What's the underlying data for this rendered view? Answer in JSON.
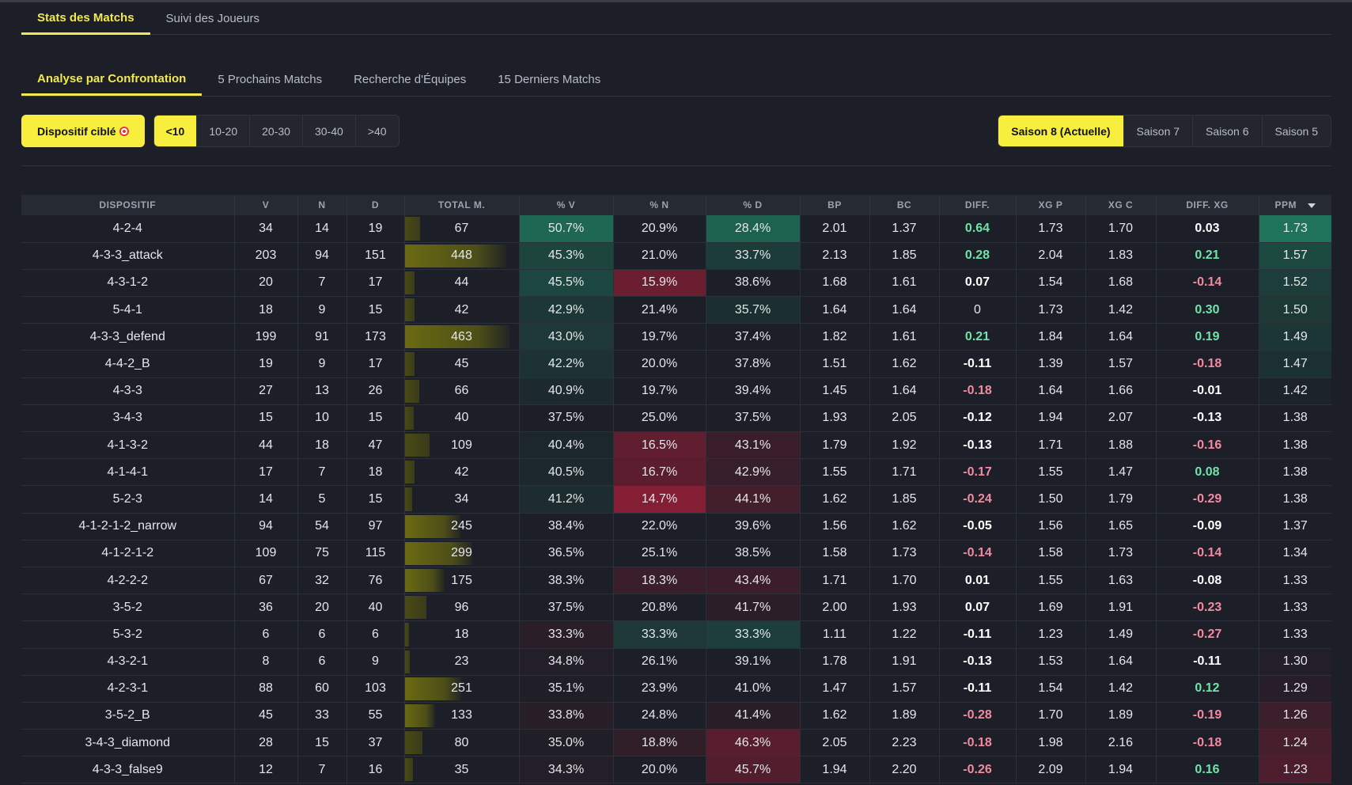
{
  "main_tabs": [
    {
      "label": "Stats des Matchs",
      "active": true
    },
    {
      "label": "Suivi des Joueurs",
      "active": false
    }
  ],
  "sub_tabs": [
    {
      "label": "Analyse par Confrontation",
      "active": true
    },
    {
      "label": "5 Prochains Matchs",
      "active": false
    },
    {
      "label": "Recherche d'Équipes",
      "active": false
    },
    {
      "label": "15 Derniers Matchs",
      "active": false
    }
  ],
  "filters": {
    "target_button": "Dispositif ciblé",
    "ranges": [
      "<10",
      "10-20",
      "20-30",
      "30-40",
      ">40"
    ],
    "active_range": "<10",
    "seasons": [
      "Saison 8 (Actuelle)",
      "Saison 7",
      "Saison 6",
      "Saison 5"
    ],
    "active_season": "Saison 8 (Actuelle)"
  },
  "table": {
    "columns": [
      "DISPOSITIF",
      "V",
      "N",
      "D",
      "TOTAL M.",
      "% V",
      "% N",
      "% D",
      "BP",
      "BC",
      "DIFF.",
      "XG P",
      "XG C",
      "DIFF. XG",
      "PPM"
    ],
    "max_total": 463,
    "rows": [
      [
        "4-2-4",
        "34",
        "14",
        "19",
        "67",
        "50.7%",
        "20.9%",
        "28.4%",
        "2.01",
        "1.37",
        "0.64",
        "1.73",
        "1.70",
        "0.03",
        "1.73"
      ],
      [
        "4-3-3_attack",
        "203",
        "94",
        "151",
        "448",
        "45.3%",
        "21.0%",
        "33.7%",
        "2.13",
        "1.85",
        "0.28",
        "2.04",
        "1.83",
        "0.21",
        "1.57"
      ],
      [
        "4-3-1-2",
        "20",
        "7",
        "17",
        "44",
        "45.5%",
        "15.9%",
        "38.6%",
        "1.68",
        "1.61",
        "0.07",
        "1.54",
        "1.68",
        "-0.14",
        "1.52"
      ],
      [
        "5-4-1",
        "18",
        "9",
        "15",
        "42",
        "42.9%",
        "21.4%",
        "35.7%",
        "1.64",
        "1.64",
        "0",
        "1.73",
        "1.42",
        "0.30",
        "1.50"
      ],
      [
        "4-3-3_defend",
        "199",
        "91",
        "173",
        "463",
        "43.0%",
        "19.7%",
        "37.4%",
        "1.82",
        "1.61",
        "0.21",
        "1.84",
        "1.64",
        "0.19",
        "1.49"
      ],
      [
        "4-4-2_B",
        "19",
        "9",
        "17",
        "45",
        "42.2%",
        "20.0%",
        "37.8%",
        "1.51",
        "1.62",
        "-0.11",
        "1.39",
        "1.57",
        "-0.18",
        "1.47"
      ],
      [
        "4-3-3",
        "27",
        "13",
        "26",
        "66",
        "40.9%",
        "19.7%",
        "39.4%",
        "1.45",
        "1.64",
        "-0.18",
        "1.64",
        "1.66",
        "-0.01",
        "1.42"
      ],
      [
        "3-4-3",
        "15",
        "10",
        "15",
        "40",
        "37.5%",
        "25.0%",
        "37.5%",
        "1.93",
        "2.05",
        "-0.12",
        "1.94",
        "2.07",
        "-0.13",
        "1.38"
      ],
      [
        "4-1-3-2",
        "44",
        "18",
        "47",
        "109",
        "40.4%",
        "16.5%",
        "43.1%",
        "1.79",
        "1.92",
        "-0.13",
        "1.71",
        "1.88",
        "-0.16",
        "1.38"
      ],
      [
        "4-1-4-1",
        "17",
        "7",
        "18",
        "42",
        "40.5%",
        "16.7%",
        "42.9%",
        "1.55",
        "1.71",
        "-0.17",
        "1.55",
        "1.47",
        "0.08",
        "1.38"
      ],
      [
        "5-2-3",
        "14",
        "5",
        "15",
        "34",
        "41.2%",
        "14.7%",
        "44.1%",
        "1.62",
        "1.85",
        "-0.24",
        "1.50",
        "1.79",
        "-0.29",
        "1.38"
      ],
      [
        "4-1-2-1-2_narrow",
        "94",
        "54",
        "97",
        "245",
        "38.4%",
        "22.0%",
        "39.6%",
        "1.56",
        "1.62",
        "-0.05",
        "1.56",
        "1.65",
        "-0.09",
        "1.37"
      ],
      [
        "4-1-2-1-2",
        "109",
        "75",
        "115",
        "299",
        "36.5%",
        "25.1%",
        "38.5%",
        "1.58",
        "1.73",
        "-0.14",
        "1.58",
        "1.73",
        "-0.14",
        "1.34"
      ],
      [
        "4-2-2-2",
        "67",
        "32",
        "76",
        "175",
        "38.3%",
        "18.3%",
        "43.4%",
        "1.71",
        "1.70",
        "0.01",
        "1.55",
        "1.63",
        "-0.08",
        "1.33"
      ],
      [
        "3-5-2",
        "36",
        "20",
        "40",
        "96",
        "37.5%",
        "20.8%",
        "41.7%",
        "2.00",
        "1.93",
        "0.07",
        "1.69",
        "1.91",
        "-0.23",
        "1.33"
      ],
      [
        "5-3-2",
        "6",
        "6",
        "6",
        "18",
        "33.3%",
        "33.3%",
        "33.3%",
        "1.11",
        "1.22",
        "-0.11",
        "1.23",
        "1.49",
        "-0.27",
        "1.33"
      ],
      [
        "4-3-2-1",
        "8",
        "6",
        "9",
        "23",
        "34.8%",
        "26.1%",
        "39.1%",
        "1.78",
        "1.91",
        "-0.13",
        "1.53",
        "1.64",
        "-0.11",
        "1.30"
      ],
      [
        "4-2-3-1",
        "88",
        "60",
        "103",
        "251",
        "35.1%",
        "23.9%",
        "41.0%",
        "1.47",
        "1.57",
        "-0.11",
        "1.54",
        "1.42",
        "0.12",
        "1.29"
      ],
      [
        "3-5-2_B",
        "45",
        "33",
        "55",
        "133",
        "33.8%",
        "24.8%",
        "41.4%",
        "1.62",
        "1.89",
        "-0.28",
        "1.70",
        "1.89",
        "-0.19",
        "1.26"
      ],
      [
        "3-4-3_diamond",
        "28",
        "15",
        "37",
        "80",
        "35.0%",
        "18.8%",
        "46.3%",
        "2.05",
        "2.23",
        "-0.18",
        "1.98",
        "2.16",
        "-0.18",
        "1.24"
      ],
      [
        "4-3-3_false9",
        "12",
        "7",
        "16",
        "35",
        "34.3%",
        "20.0%",
        "45.7%",
        "1.94",
        "2.20",
        "-0.26",
        "2.09",
        "1.94",
        "0.16",
        "1.23"
      ]
    ]
  }
}
